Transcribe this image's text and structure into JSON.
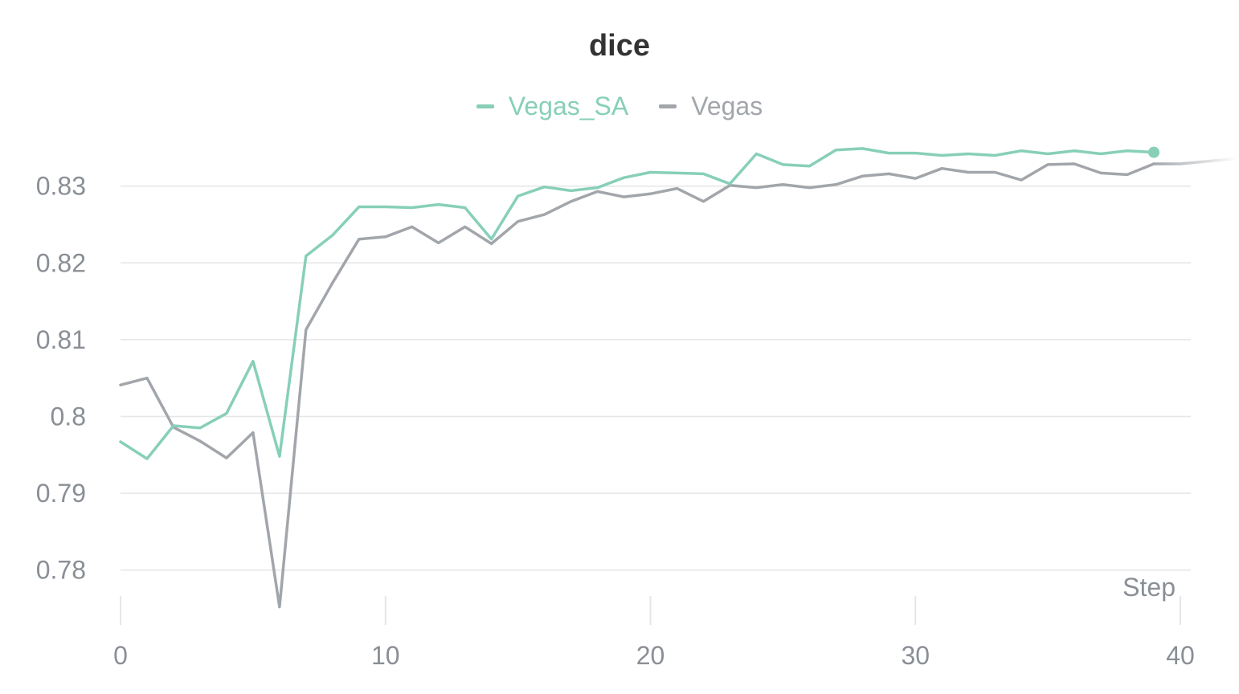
{
  "chart_data": {
    "type": "line",
    "title": "dice",
    "xlabel": "Step",
    "ylabel": "",
    "xlim": [
      0,
      40
    ],
    "ylim": [
      0.775,
      0.8355
    ],
    "grid": true,
    "legend_position": "top-center",
    "xticks": [
      "0",
      "10",
      "20",
      "30",
      "40"
    ],
    "yticks": [
      "0.78",
      "0.79",
      "0.8",
      "0.81",
      "0.82",
      "0.83"
    ],
    "x": [
      0,
      1,
      2,
      3,
      4,
      5,
      6,
      7,
      8,
      9,
      10,
      11,
      12,
      13,
      14,
      15,
      16,
      17,
      18,
      19,
      20,
      21,
      22,
      23,
      24,
      25,
      26,
      27,
      28,
      29,
      30,
      31,
      32,
      33,
      34,
      35,
      36,
      37,
      38,
      39
    ],
    "series": [
      {
        "name": "Vegas_SA",
        "color": "#87cfb9",
        "values": [
          0.7967,
          0.7945,
          0.7988,
          0.7985,
          0.8004,
          0.8072,
          0.7948,
          0.8209,
          0.8236,
          0.8273,
          0.8273,
          0.8272,
          0.8276,
          0.8272,
          0.8231,
          0.8287,
          0.8299,
          0.8294,
          0.8298,
          0.8311,
          0.8318,
          0.8317,
          0.8316,
          0.8303,
          0.8342,
          0.8328,
          0.8326,
          0.8347,
          0.8349,
          0.8343,
          0.8343,
          0.834,
          0.8342,
          0.834,
          0.8346,
          0.8342,
          0.8346,
          0.8342,
          0.8346,
          0.8344
        ]
      },
      {
        "name": "Vegas",
        "color": "#a2a6ab",
        "values": [
          0.8041,
          0.805,
          0.7986,
          0.7968,
          0.7946,
          0.7979,
          0.7752,
          0.8113,
          0.8174,
          0.8231,
          0.8234,
          0.8247,
          0.8226,
          0.8247,
          0.8225,
          0.8254,
          0.8263,
          0.828,
          0.8293,
          0.8286,
          0.829,
          0.8297,
          0.828,
          0.8301,
          0.8298,
          0.8302,
          0.8298,
          0.8302,
          0.8313,
          0.8316,
          0.831,
          0.8323,
          0.8318,
          0.8318,
          0.8308,
          0.8328,
          0.8329,
          0.8317,
          0.8315,
          0.8329
        ]
      }
    ]
  }
}
